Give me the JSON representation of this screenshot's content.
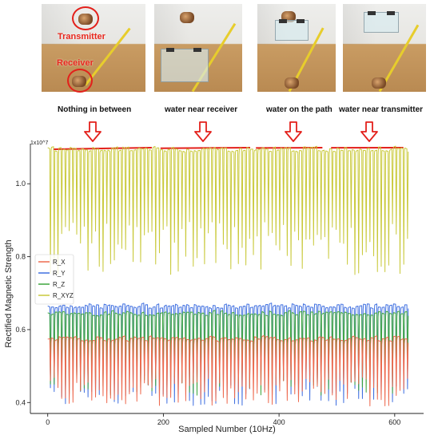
{
  "photos": {
    "panels": [
      {
        "caption": "Nothing in between"
      },
      {
        "caption": "water near receiver"
      },
      {
        "caption": "water on the path"
      },
      {
        "caption": "water near transmitter"
      }
    ],
    "labels": {
      "transmitter": "Transmitter",
      "receiver": "Receiver"
    }
  },
  "colors": {
    "R_X": "#ee6a4f",
    "R_Y": "#3f6fe0",
    "R_Z": "#3ea63e",
    "R_XYZ": "#c9c93a",
    "annotation": "#e3201b"
  },
  "chart_data": {
    "type": "line",
    "ylabel": "Rectified Magnetic Strength",
    "xlabel": "Sampled Number (10Hz)",
    "scale_note": "1x10^7",
    "xlim": [
      -30,
      650
    ],
    "ylim": [
      0.37,
      1.11
    ],
    "x_ticks": [
      0,
      200,
      400,
      600
    ],
    "y_ticks": [
      0.4,
      0.6,
      0.8,
      1.0
    ],
    "y_tick_labels": [
      "0.4",
      "0.6",
      "0.8",
      "1.0"
    ],
    "legend": [
      "R_X",
      "R_Y",
      "R_Z",
      "R_XYZ"
    ],
    "legend_position": "center-left",
    "period_samples": 6.5,
    "x_range": [
      0,
      620
    ],
    "series": [
      {
        "name": "R_XYZ",
        "high": 1.095,
        "low_range": [
          0.75,
          0.9
        ]
      },
      {
        "name": "R_Y",
        "high": 0.665,
        "low_range": [
          0.39,
          0.48
        ]
      },
      {
        "name": "R_Z",
        "high": 0.645,
        "low_range": [
          0.42,
          0.5
        ]
      },
      {
        "name": "R_X",
        "high": 0.575,
        "low_range": [
          0.39,
          0.47
        ]
      }
    ],
    "segments": [
      {
        "start": 10,
        "end": 180
      },
      {
        "start": 195,
        "end": 350
      },
      {
        "start": 360,
        "end": 475
      },
      {
        "start": 490,
        "end": 615
      }
    ]
  }
}
